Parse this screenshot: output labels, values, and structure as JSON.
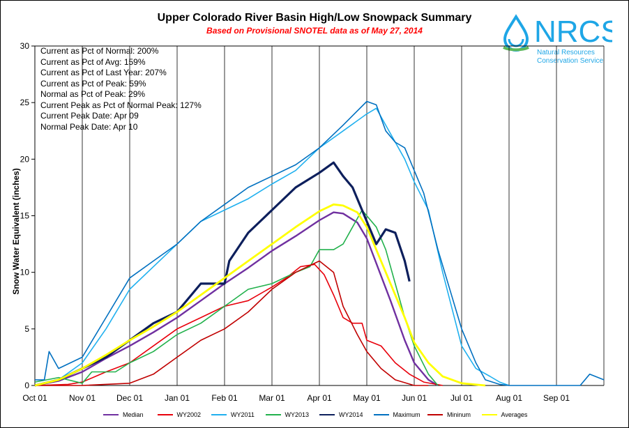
{
  "title": "Upper Colorado River Basin High/Low Snowpack Summary",
  "subtitle": "Based on Provisional SNOTEL data as of May 27, 2014",
  "stats": [
    "Current  as Pct of Normal: 200%",
    "Current  as Pct of Avg: 159%",
    "Current  as Pct of Last Year: 207%",
    "Current  as Pct of Peak: 59%",
    "Normal  as Pct of Peak: 29%",
    "Current  Peak as Pct of Normal  Peak: 127%",
    "Current  Peak Date:  Apr 09",
    "Normal Peak Date:  Apr 10"
  ],
  "logo": {
    "text": "NRCS",
    "line1": "Natural Resources",
    "line2": "Conservation Service"
  },
  "chart_data": {
    "type": "line",
    "title": "Upper Colorado River Basin High/Low Snowpack Summary",
    "subtitle": "Based on Provisional SNOTEL data as of May 27, 2014",
    "ylabel": "Snow Water Equivalent (inches)",
    "xlabel": "",
    "x_ticks": [
      "Oct 01",
      "Nov 01",
      "Dec 01",
      "Jan 01",
      "Feb 01",
      "Mar 01",
      "Apr 01",
      "May 01",
      "Jun 01",
      "Jul 01",
      "Aug 01",
      "Sep 01"
    ],
    "y_ticks": [
      0,
      5,
      10,
      15,
      20,
      25,
      30
    ],
    "ylim": [
      0,
      30
    ],
    "x_unit": "months since Oct 01",
    "xlim": [
      0,
      12
    ],
    "grid": "vertical",
    "legend_position": "bottom",
    "series": [
      {
        "name": "Median",
        "color": "#7030a0",
        "x": [
          0,
          0.5,
          1,
          1.5,
          2,
          2.5,
          3,
          3.5,
          4,
          4.5,
          5,
          5.5,
          6,
          6.3,
          6.5,
          6.8,
          7,
          7.2,
          7.5,
          7.8,
          8,
          8.3,
          8.5
        ],
        "y": [
          0,
          0.4,
          1.2,
          2.4,
          3.5,
          4.7,
          6.0,
          7.5,
          9.0,
          10.4,
          11.9,
          13.2,
          14.6,
          15.3,
          15.2,
          14.4,
          13.0,
          10.8,
          7.5,
          4.0,
          2.0,
          0.5,
          0
        ]
      },
      {
        "name": "WY2002",
        "color": "#e8000b",
        "x": [
          0,
          0.7,
          1,
          1.5,
          2,
          2.5,
          3,
          3.5,
          4,
          4.5,
          5,
          5.3,
          5.6,
          5.9,
          6.1,
          6.3,
          6.5,
          6.7,
          6.9,
          7,
          7.3,
          7.6,
          7.9,
          8.2,
          8.6
        ],
        "y": [
          0,
          0.1,
          0.3,
          1.2,
          2.0,
          3.5,
          5.0,
          6.0,
          7.0,
          7.5,
          8.7,
          9.5,
          10.5,
          10.7,
          9.8,
          8.0,
          6.0,
          5.5,
          5.5,
          4.0,
          3.5,
          2.0,
          1.0,
          0.3,
          0
        ]
      },
      {
        "name": "WY2011",
        "color": "#1fb0ef",
        "x": [
          0,
          0.5,
          1,
          1.5,
          2,
          2.5,
          3,
          3.5,
          4,
          4.5,
          5,
          5.5,
          6,
          6.5,
          7,
          7.2,
          7.4,
          7.8,
          8,
          8.3,
          8.6,
          9,
          9.3,
          9.6,
          9.8,
          10
        ],
        "y": [
          0,
          0.5,
          2.0,
          5.0,
          8.5,
          10.5,
          12.5,
          14.5,
          15.5,
          16.5,
          17.8,
          19.0,
          21.0,
          22.5,
          24.0,
          24.5,
          23.0,
          20.0,
          18.0,
          15.5,
          10.0,
          3.5,
          1.5,
          0.8,
          0.3,
          0
        ]
      },
      {
        "name": "WY2013",
        "color": "#22b14c",
        "x": [
          0,
          0.5,
          1,
          1.2,
          1.7,
          2,
          2.5,
          3,
          3.5,
          4,
          4.5,
          5,
          5.5,
          5.8,
          6,
          6.3,
          6.5,
          6.7,
          6.9,
          7,
          7.2,
          7.4,
          7.6,
          7.8,
          8,
          8.3,
          8.5
        ],
        "y": [
          0.3,
          0.7,
          0.2,
          1.2,
          1.2,
          2.0,
          3.0,
          4.5,
          5.5,
          7.0,
          8.5,
          9.0,
          10.0,
          10.5,
          12.0,
          12.0,
          12.5,
          14.0,
          15.5,
          15.0,
          14.0,
          12.0,
          9.0,
          6.0,
          3.5,
          1.0,
          0
        ]
      },
      {
        "name": "WY2014",
        "color": "#0d1f5c",
        "x": [
          0,
          0.5,
          1,
          1.5,
          2,
          2.5,
          3,
          3.3,
          3.5,
          4,
          4.1,
          4.5,
          5,
          5.5,
          6,
          6.3,
          6.5,
          6.7,
          7,
          7.2,
          7.4,
          7.6,
          7.8,
          7.9
        ],
        "y": [
          0,
          0.5,
          1.5,
          2.5,
          4.0,
          5.5,
          6.5,
          8.0,
          9.0,
          9.0,
          11.0,
          13.5,
          15.5,
          17.5,
          18.8,
          19.7,
          18.5,
          17.5,
          14.5,
          12.5,
          13.8,
          13.5,
          11.0,
          9.2
        ]
      },
      {
        "name": "Maximum",
        "color": "#0070c0",
        "x": [
          0,
          0.2,
          0.3,
          0.5,
          1,
          1.5,
          2,
          2.5,
          3,
          3.5,
          4,
          4.5,
          5,
          5.5,
          6,
          6.5,
          7,
          7.2,
          7.4,
          7.6,
          7.8,
          8,
          8.2,
          8.5,
          9,
          9.3,
          9.5,
          9.8,
          10,
          11.5,
          11.7,
          12
        ],
        "y": [
          0.5,
          0.5,
          3.0,
          1.5,
          2.5,
          6.0,
          9.5,
          11.0,
          12.5,
          14.5,
          16.0,
          17.5,
          18.5,
          19.5,
          21.0,
          23.0,
          25.1,
          24.8,
          22.5,
          21.5,
          21.0,
          19.0,
          17.0,
          12.0,
          5.0,
          2.0,
          0.5,
          0.1,
          0,
          0,
          1.0,
          0.5
        ]
      },
      {
        "name": "Mininum",
        "color": "#c00000",
        "x": [
          0,
          1,
          2,
          2.5,
          3,
          3.5,
          4,
          4.5,
          5,
          5.5,
          6,
          6.3,
          6.5,
          6.8,
          7,
          7.3,
          7.6,
          8,
          8.3
        ],
        "y": [
          0,
          0,
          0.2,
          1.0,
          2.5,
          4.0,
          5.0,
          6.5,
          8.5,
          10.0,
          11.0,
          10.0,
          7.0,
          4.5,
          3.0,
          1.5,
          0.5,
          0,
          0
        ]
      },
      {
        "name": "Averages",
        "color": "#ffff00",
        "x": [
          0,
          0.5,
          1,
          1.5,
          2,
          2.5,
          3,
          3.5,
          4,
          4.5,
          5,
          5.5,
          6,
          6.3,
          6.5,
          6.8,
          7,
          7.2,
          7.5,
          7.8,
          8,
          8.3,
          8.6,
          9,
          9.5
        ],
        "y": [
          0,
          0.5,
          1.5,
          2.7,
          4.0,
          5.2,
          6.5,
          8.0,
          9.5,
          11.0,
          12.5,
          14.0,
          15.4,
          16.0,
          15.9,
          15.3,
          14.0,
          12.0,
          9.0,
          6.0,
          3.8,
          2.0,
          0.8,
          0.2,
          0
        ]
      }
    ]
  }
}
